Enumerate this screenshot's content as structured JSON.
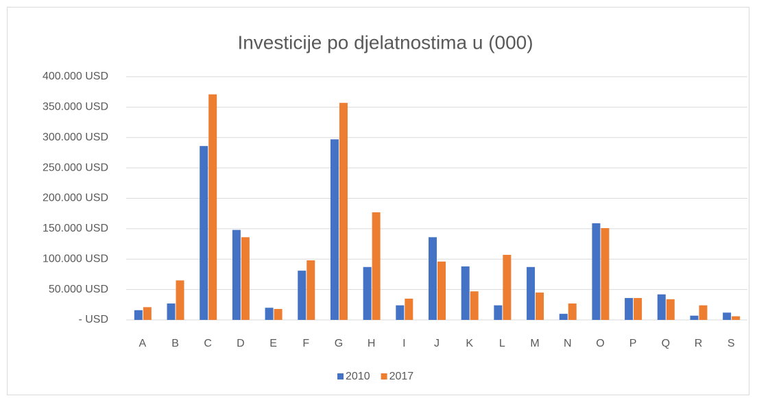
{
  "chart_data": {
    "type": "bar",
    "title": "Investicije po djelatnostima u (000)",
    "categories": [
      "A",
      "B",
      "C",
      "D",
      "E",
      "F",
      "G",
      "H",
      "I",
      "J",
      "K",
      "L",
      "M",
      "N",
      "O",
      "P",
      "Q",
      "R",
      "S"
    ],
    "series": [
      {
        "name": "2010",
        "color": "#4472c4",
        "values": [
          16000,
          27000,
          286000,
          148000,
          20000,
          81000,
          297000,
          87000,
          24000,
          136000,
          88000,
          24000,
          87000,
          10000,
          159000,
          36000,
          42000,
          7000,
          12000
        ]
      },
      {
        "name": "2017",
        "color": "#ed7d31",
        "values": [
          21000,
          65000,
          371000,
          136000,
          18000,
          98000,
          357000,
          177000,
          35000,
          96000,
          47000,
          107000,
          45000,
          27000,
          151000,
          36000,
          34000,
          24000,
          6000
        ]
      }
    ],
    "ylim": [
      0,
      400000
    ],
    "yticks": [
      {
        "value": 0,
        "label": "- USD"
      },
      {
        "value": 50000,
        "label": "50.000 USD"
      },
      {
        "value": 100000,
        "label": "100.000 USD"
      },
      {
        "value": 150000,
        "label": "150.000 USD"
      },
      {
        "value": 200000,
        "label": "200.000 USD"
      },
      {
        "value": 250000,
        "label": "250.000 USD"
      },
      {
        "value": 300000,
        "label": "300.000 USD"
      },
      {
        "value": 350000,
        "label": "350.000 USD"
      },
      {
        "value": 400000,
        "label": "400.000 USD"
      }
    ],
    "grid": true,
    "legend": "bottom"
  }
}
